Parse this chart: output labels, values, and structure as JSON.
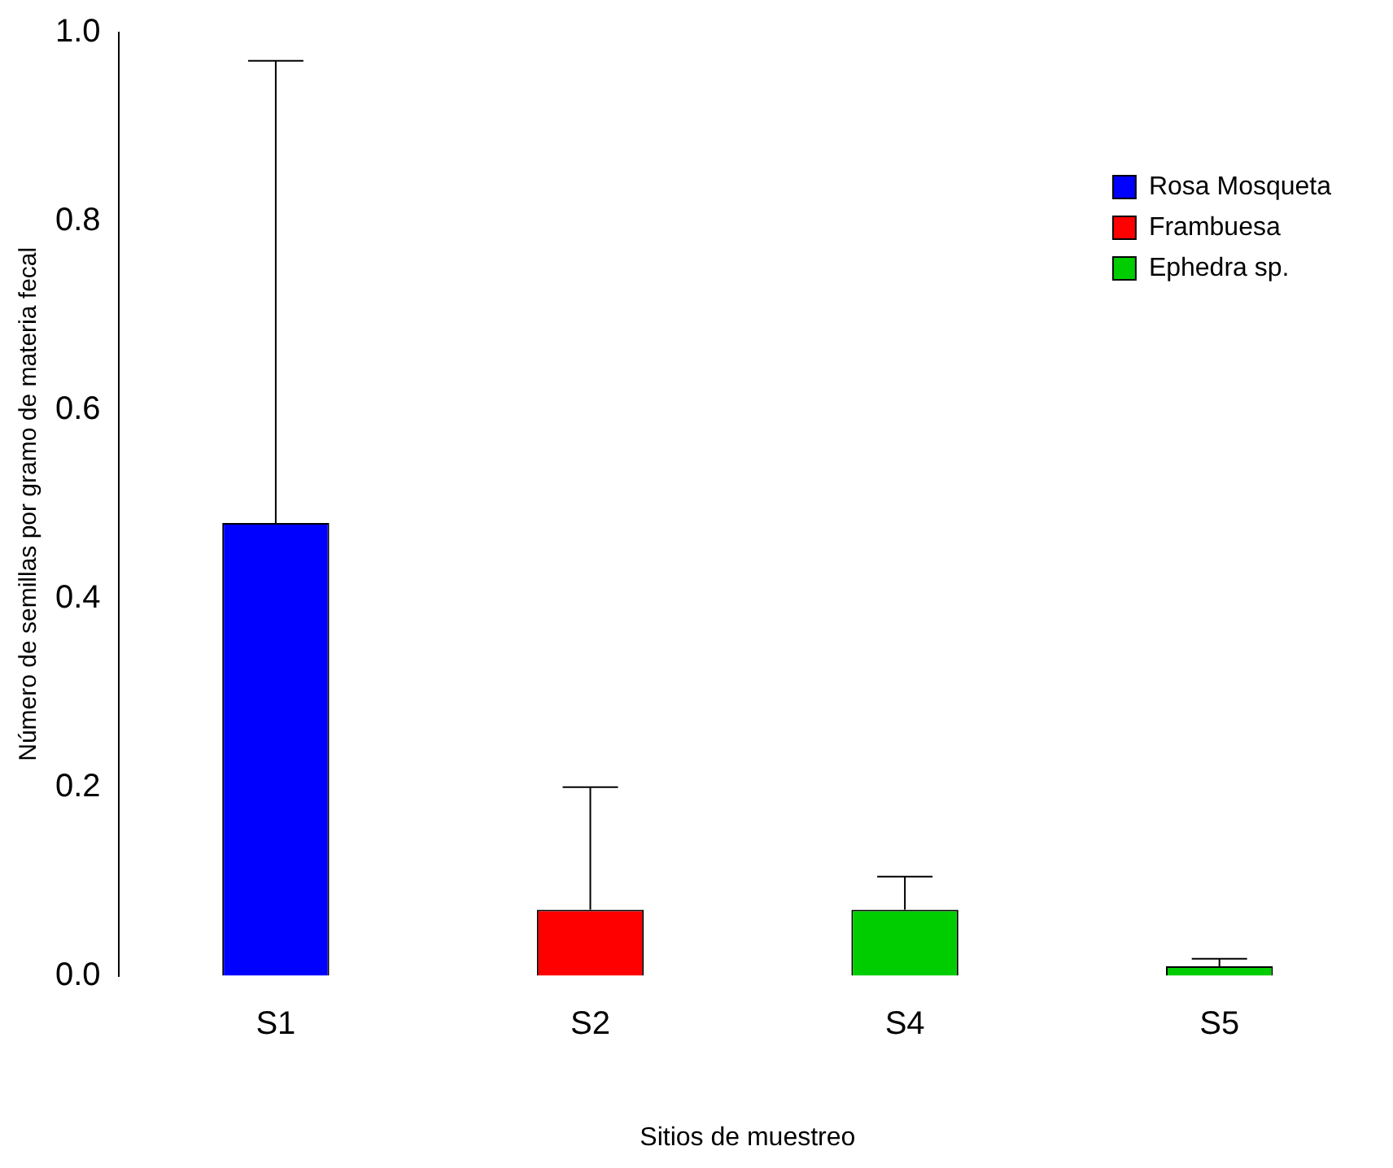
{
  "chart_data": {
    "type": "bar",
    "xlabel": "Sitios de muestreo",
    "ylabel": "Número de semillas por gramo de materia fecal",
    "categories": [
      "S1",
      "S2",
      "S4",
      "S5"
    ],
    "series": [
      {
        "name": "Rosa Mosqueta",
        "color": "#0000ff",
        "values": [
          0.48,
          null,
          null,
          null
        ],
        "errors": [
          [
            0.48,
            0.97
          ],
          null,
          null,
          null
        ]
      },
      {
        "name": "Frambuesa",
        "color": "#ff0000",
        "values": [
          null,
          0.07,
          null,
          null
        ],
        "errors": [
          null,
          [
            0.07,
            0.2
          ],
          null,
          null
        ]
      },
      {
        "name": "Ephedra sp.",
        "color": "#00cd00",
        "values": [
          null,
          null,
          0.07,
          0.01
        ],
        "errors": [
          null,
          null,
          [
            0.07,
            0.105
          ],
          [
            0.01,
            0.018
          ]
        ]
      }
    ],
    "ylim": [
      0,
      1.0
    ],
    "yticks": [
      {
        "value": 0,
        "label": "0.0"
      },
      {
        "value": 0.2,
        "label": "0.2"
      },
      {
        "value": 0.4,
        "label": "0.4"
      },
      {
        "value": 0.6,
        "label": "0.6"
      },
      {
        "value": 0.8,
        "label": "0.8"
      },
      {
        "value": 1.0,
        "label": "1.0"
      }
    ],
    "grid": false,
    "legend": "top right"
  }
}
